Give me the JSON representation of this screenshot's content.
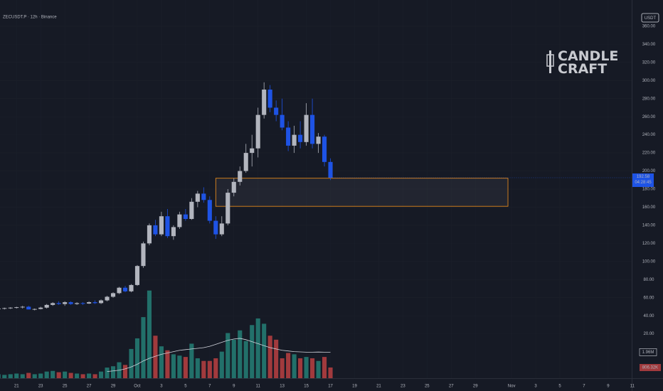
{
  "chart_data": {
    "type": "candlestick",
    "title": "ZECUSDT.P · 12h · Binance",
    "y_axis_label": "USDT",
    "watermark": [
      "CANDLE",
      "CRAFT"
    ],
    "countdown": "04:28:45",
    "x": [
      -1.5,
      -1,
      -0.5,
      0,
      0.5,
      1,
      1.5,
      2,
      2.5,
      3,
      3.5,
      4,
      4.5,
      5,
      5.5,
      6,
      6.5,
      7,
      7.5,
      8,
      8.5,
      9,
      9.5,
      10,
      10.5,
      11,
      11.5,
      12,
      12.5,
      13,
      13.5,
      14,
      14.5,
      15,
      15.5,
      16,
      16.5,
      17,
      17.5,
      18,
      18.5,
      19,
      19.5,
      20,
      20.5,
      21,
      21.5,
      22,
      22.5,
      23,
      23.5,
      24,
      24.5,
      25,
      25.5,
      26
    ],
    "open": [
      48,
      48,
      48.5,
      49,
      49.5,
      50,
      47,
      47.5,
      49,
      52,
      54,
      53,
      55,
      53,
      54,
      53.5,
      55,
      54,
      57,
      61,
      65,
      71,
      67,
      74,
      95,
      120,
      140,
      130,
      150,
      128,
      138,
      152,
      147,
      166,
      175,
      168,
      145,
      130,
      142,
      176,
      188,
      200,
      220,
      225,
      262,
      290,
      270,
      262,
      248,
      228,
      240,
      232,
      262,
      230,
      238,
      210
    ],
    "high": [
      49,
      49,
      49.5,
      50,
      51,
      51,
      48,
      50,
      53,
      55,
      56,
      56,
      56,
      55,
      55,
      56,
      57,
      58,
      62,
      66,
      72,
      73,
      75,
      96,
      122,
      142,
      146,
      155,
      158,
      140,
      155,
      158,
      170,
      178,
      182,
      172,
      150,
      150,
      180,
      192,
      205,
      230,
      240,
      270,
      298,
      295,
      278,
      280,
      255,
      250,
      255,
      275,
      280,
      242,
      240,
      214
    ],
    "low": [
      47,
      47,
      47.5,
      48,
      48,
      47,
      46,
      47,
      48,
      51,
      52,
      51,
      52,
      52,
      52,
      53,
      53,
      53,
      56,
      60,
      64,
      66,
      66,
      73,
      93,
      118,
      128,
      128,
      126,
      124,
      136,
      145,
      146,
      160,
      165,
      142,
      125,
      128,
      140,
      172,
      184,
      198,
      205,
      215,
      258,
      265,
      255,
      245,
      222,
      220,
      225,
      228,
      225,
      220,
      205,
      190
    ],
    "close": [
      48,
      48.5,
      49,
      49.5,
      50,
      47,
      47.5,
      49,
      52,
      54,
      53,
      55,
      53,
      54,
      53.5,
      55,
      54,
      57,
      61,
      65,
      71,
      67,
      74,
      95,
      120,
      140,
      130,
      150,
      128,
      138,
      152,
      147,
      166,
      175,
      168,
      145,
      130,
      142,
      176,
      188,
      200,
      220,
      225,
      262,
      290,
      270,
      262,
      248,
      228,
      240,
      232,
      262,
      230,
      238,
      210,
      192.58
    ],
    "volume": [
      0.3,
      0.25,
      0.3,
      0.35,
      0.3,
      0.4,
      0.3,
      0.35,
      0.5,
      0.55,
      0.45,
      0.5,
      0.4,
      0.35,
      0.3,
      0.35,
      0.3,
      0.5,
      0.8,
      0.9,
      1.2,
      1.0,
      2.2,
      3.0,
      4.6,
      6.6,
      3.2,
      2.4,
      2.1,
      1.8,
      1.7,
      1.6,
      2.6,
      1.5,
      1.3,
      1.3,
      1.5,
      2.0,
      3.4,
      2.9,
      3.6,
      2.8,
      4.0,
      4.5,
      4.1,
      3.2,
      2.9,
      1.5,
      1.9,
      1.8,
      1.5,
      1.6,
      1.5,
      1.3,
      1.6,
      0.80632
    ],
    "volume_ma": [
      null,
      null,
      null,
      null,
      null,
      null,
      null,
      null,
      null,
      null,
      null,
      null,
      null,
      null,
      null,
      null,
      null,
      null,
      0.5,
      0.55,
      0.6,
      0.7,
      0.85,
      1.05,
      1.3,
      1.5,
      1.65,
      1.8,
      1.9,
      2.0,
      2.1,
      2.15,
      2.2,
      2.25,
      2.3,
      2.4,
      2.55,
      2.7,
      2.85,
      2.95,
      3.0,
      2.9,
      2.75,
      2.6,
      2.45,
      2.3,
      2.2,
      2.1,
      2.05,
      2.0,
      1.98,
      1.96,
      1.96,
      1.97,
      1.96,
      1.96
    ],
    "volume_label": "806.32K",
    "volume_ma_label": "1.96M",
    "volume_ylim": [
      0,
      7.6
    ],
    "up_color": "#b2b5be",
    "down_color": "#1e53e5",
    "volume_up_color": "#22706a",
    "volume_down_color": "#a13a3d",
    "volume_ma_color": "#d1d4dc",
    "zone": {
      "x": [
        16.5,
        40.7
      ],
      "y": [
        161,
        192
      ],
      "color": "#f7931a"
    },
    "xlim": [
      -1.37,
      50.95
    ],
    "ylim": [
      -29,
      389
    ],
    "grid": true,
    "xticks": [
      {
        "value": 0,
        "label": "21"
      },
      {
        "value": 2,
        "label": "23"
      },
      {
        "value": 4,
        "label": "25"
      },
      {
        "value": 6,
        "label": "27"
      },
      {
        "value": 8,
        "label": "29"
      },
      {
        "value": 10,
        "label": "Oct"
      },
      {
        "value": 12,
        "label": "3"
      },
      {
        "value": 14,
        "label": "5"
      },
      {
        "value": 16,
        "label": "7"
      },
      {
        "value": 18,
        "label": "9"
      },
      {
        "value": 20,
        "label": "11"
      },
      {
        "value": 22,
        "label": "13"
      },
      {
        "value": 24,
        "label": "15"
      },
      {
        "value": 26,
        "label": "17"
      },
      {
        "value": 28,
        "label": "19"
      },
      {
        "value": 30,
        "label": "21"
      },
      {
        "value": 32,
        "label": "23"
      },
      {
        "value": 34,
        "label": "25"
      },
      {
        "value": 36,
        "label": "27"
      },
      {
        "value": 38,
        "label": "29"
      },
      {
        "value": 41,
        "label": "Nov"
      },
      {
        "value": 43,
        "label": "3"
      },
      {
        "value": 45,
        "label": "5"
      },
      {
        "value": 47,
        "label": "7"
      },
      {
        "value": 49,
        "label": "9"
      },
      {
        "value": 51,
        "label": "11"
      }
    ],
    "yticks": [
      {
        "value": 20,
        "label": "20.00"
      },
      {
        "value": 40,
        "label": "40.00"
      },
      {
        "value": 60,
        "label": "60.00"
      },
      {
        "value": 80,
        "label": "80.00"
      },
      {
        "value": 100,
        "label": "100.00"
      },
      {
        "value": 120,
        "label": "120.00"
      },
      {
        "value": 140,
        "label": "140.00"
      },
      {
        "value": 160,
        "label": "160.00"
      },
      {
        "value": 180,
        "label": "180.00"
      },
      {
        "value": 200,
        "label": "200.00"
      },
      {
        "value": 220,
        "label": "220.00"
      },
      {
        "value": 240,
        "label": "240.00"
      },
      {
        "value": 260,
        "label": "260.00"
      },
      {
        "value": 280,
        "label": "280.00"
      },
      {
        "value": 300,
        "label": "300.00"
      },
      {
        "value": 320,
        "label": "320.00"
      },
      {
        "value": 340,
        "label": "340.00"
      },
      {
        "value": 360,
        "label": "360.00"
      }
    ]
  }
}
